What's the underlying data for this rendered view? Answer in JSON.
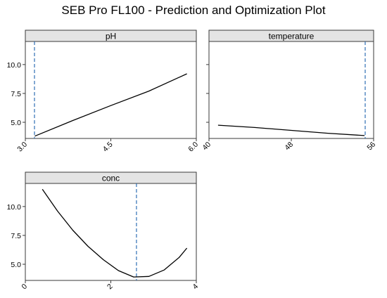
{
  "figure": {
    "title": "SEB Pro FL100 - Prediction and Optimization Plot"
  },
  "chart_data": [
    {
      "type": "line",
      "panel_title": "pH",
      "xlim": [
        3.0,
        6.0
      ],
      "ylim": [
        3.6,
        12.0
      ],
      "x_ticks": [
        3.0,
        4.5,
        6.0
      ],
      "x_tick_labels": [
        "3.0",
        "4.5",
        "6.0"
      ],
      "y_ticks": [
        5.0,
        7.5,
        10.0
      ],
      "y_tick_labels": [
        "5.0",
        "7.5",
        "10.0"
      ],
      "show_y_tick_labels": true,
      "optimum_x": 3.0,
      "x": [
        3.0,
        3.75,
        4.5,
        5.25,
        6.0
      ],
      "y": [
        3.8,
        5.15,
        6.45,
        7.7,
        9.2
      ]
    },
    {
      "type": "line",
      "panel_title": "temperature",
      "xlim": [
        40,
        56
      ],
      "ylim": [
        3.6,
        12.0
      ],
      "x_ticks": [
        40,
        48,
        56
      ],
      "x_tick_labels": [
        "40",
        "48",
        "56"
      ],
      "y_ticks": [
        5.0,
        7.5,
        10.0
      ],
      "y_tick_labels": [
        "5.0",
        "7.5",
        "10.0"
      ],
      "show_y_tick_labels": false,
      "optimum_x": 56,
      "x": [
        40,
        44,
        48,
        52,
        56
      ],
      "y": [
        4.75,
        4.55,
        4.3,
        4.05,
        3.85
      ]
    },
    {
      "type": "line",
      "panel_title": "conc",
      "xlim": [
        0,
        4
      ],
      "ylim": [
        3.6,
        12.0
      ],
      "x_ticks": [
        0,
        2,
        4
      ],
      "x_tick_labels": [
        "0",
        "2",
        "4"
      ],
      "y_ticks": [
        5.0,
        7.5,
        10.0
      ],
      "y_tick_labels": [
        "5.0",
        "7.5",
        "10.0"
      ],
      "show_y_tick_labels": true,
      "optimum_x": 2.6,
      "x": [
        0.2,
        0.6,
        1.0,
        1.4,
        1.8,
        2.2,
        2.6,
        3.0,
        3.4,
        3.8,
        4.0
      ],
      "y": [
        11.5,
        9.6,
        7.95,
        6.55,
        5.4,
        4.45,
        3.9,
        3.95,
        4.5,
        5.6,
        6.4
      ]
    }
  ]
}
